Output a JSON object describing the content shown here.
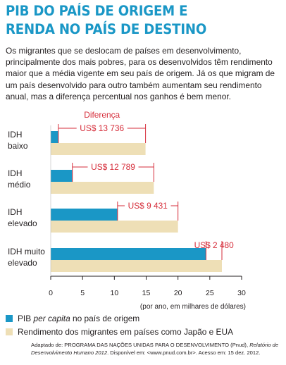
{
  "title_lines": [
    "PIB DO PAÍS DE ORIGEM E",
    "RENDA NO PAÍS DE DESTINO"
  ],
  "intro": "Os migrantes que se deslocam de países em desenvolvimento, principalmente dos mais pobres, para os desenvolvidos têm rendimento maior que a média vigente em seu país de origem. Já os que migram de um país desenvolvido para outro também aumentam seu rendimento anual, mas a diferença percentual nos ganhos é bem menor.",
  "colors": {
    "title": "#1a97c6",
    "pib": "#1a97c6",
    "income": "#eedfb6",
    "difference": "#d62e3b"
  },
  "chart_data": {
    "type": "bar",
    "orientation": "horizontal",
    "categories": [
      [
        "IDH",
        "baixo"
      ],
      [
        "IDH",
        "médio"
      ],
      [
        "IDH",
        "elevado"
      ],
      [
        "IDH muito",
        "elevado"
      ]
    ],
    "series": [
      {
        "name": "PIB per capita no país de origem",
        "values": [
          1.2,
          3.4,
          10.5,
          24.4
        ]
      },
      {
        "name": "Rendimento dos migrantes em países como Japão e EUA",
        "values": [
          14.9,
          16.2,
          20.0,
          26.9
        ]
      }
    ],
    "difference_label": "Diferença",
    "differences": [
      "US$ 13 736",
      "US$ 12 789",
      "US$ 9 431",
      "US$ 2 480"
    ],
    "xticks": [
      0,
      5,
      10,
      15,
      20,
      25,
      30
    ],
    "xlim": [
      0,
      30
    ],
    "xlabel": "(por ano, em milhares de dólares)"
  },
  "legend": {
    "pib_prefix": "PIB ",
    "pib_italic": "per capita",
    "pib_suffix": " no país de origem",
    "income": "Rendimento dos migrantes em países como Japão e EUA"
  },
  "source": {
    "prefix": "Adaptado de: PROGRAMA DAS NAÇÕES UNIDAS PARA O DESENVOLVIMENTO (Pnud), ",
    "italic": "Relatório de Desenvolvimento Humano 2012",
    "suffix": ". Disponível em: <www.pnud.com.br>. Acesso em: 15 dez. 2012."
  }
}
